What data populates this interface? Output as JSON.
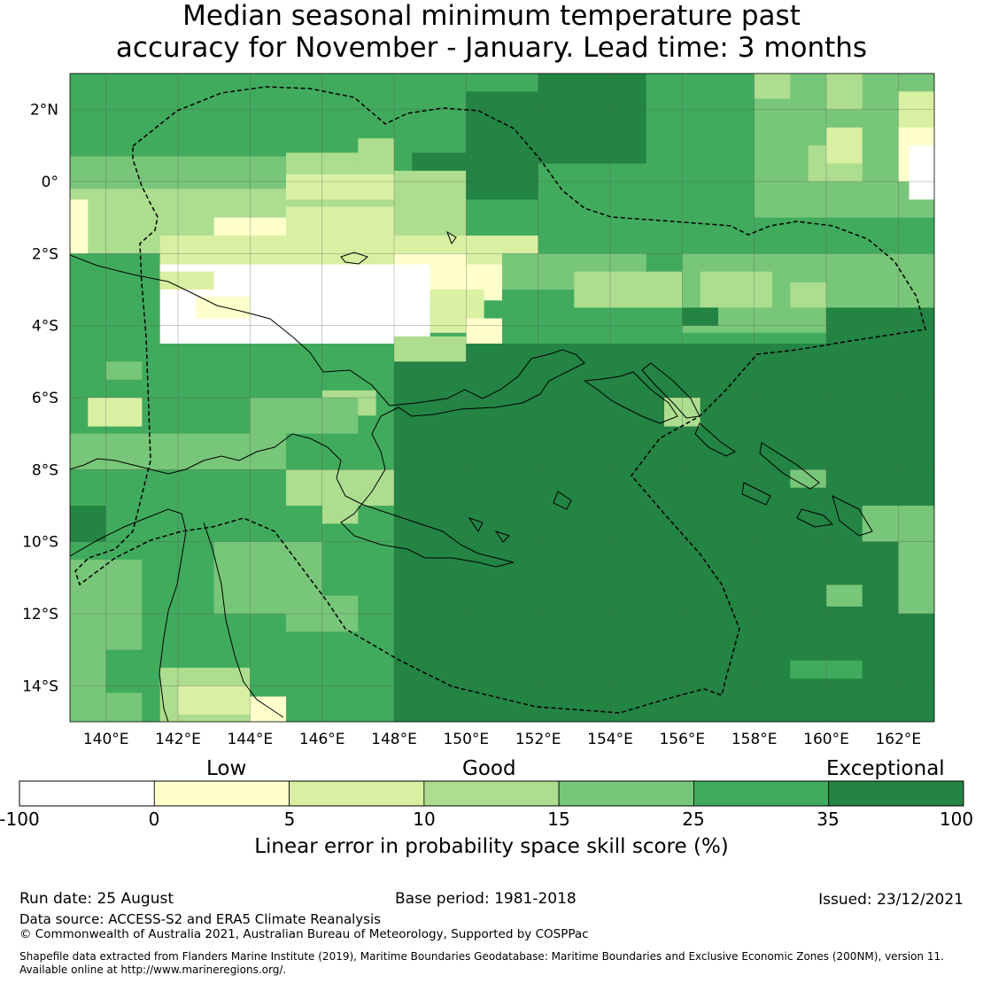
{
  "title": {
    "line1": "Median seasonal minimum temperature past",
    "line2": "accuracy for November - January. Lead time: 3 months"
  },
  "map": {
    "lon_range": [
      139,
      163
    ],
    "lat_range": [
      -15,
      3
    ],
    "lon_ticks": [
      "140°E",
      "142°E",
      "144°E",
      "146°E",
      "148°E",
      "150°E",
      "152°E",
      "154°E",
      "156°E",
      "158°E",
      "160°E",
      "162°E"
    ],
    "lat_ticks": [
      "2°N",
      "0°",
      "2°S",
      "4°S",
      "6°S",
      "8°S",
      "10°S",
      "12°S",
      "14°S"
    ],
    "grid": true,
    "boundary_style": "dashed",
    "skill_grid_description": "gridded skill score cells, mostly exceptional (dark green) in the south-east, low (white/yellow) north of New Guinea"
  },
  "colorbar": {
    "categories": [
      "Low",
      "Good",
      "Exceptional"
    ],
    "tick_labels": [
      "-100",
      "0",
      "5",
      "10",
      "15",
      "25",
      "35",
      "100"
    ],
    "colors": [
      "#ffffff",
      "#ffffcc",
      "#d9f0a3",
      "#addd8e",
      "#78c679",
      "#41ab5d",
      "#238443"
    ],
    "label": "Linear error in probability space skill score (%)"
  },
  "footer": {
    "run_date": "Run date: 25 August",
    "base_period": "Base period: 1981-2018",
    "issued": "Issued: 23/12/2021",
    "data_source": "Data source: ACCESS-S2 and ERA5 Climate Reanalysis",
    "copyright": "© Commonwealth of Australia 2021, Australian Bureau of Meteorology, Supported by COSPPac",
    "shapefile_line1": "Shapefile data extracted from Flanders Marine Institute (2019), Maritime Boundaries Geodatabase: Maritime Boundaries and Exclusive Economic Zones (200NM), version 11.",
    "shapefile_line2": "Available online at http://www.marineregions.org/."
  }
}
